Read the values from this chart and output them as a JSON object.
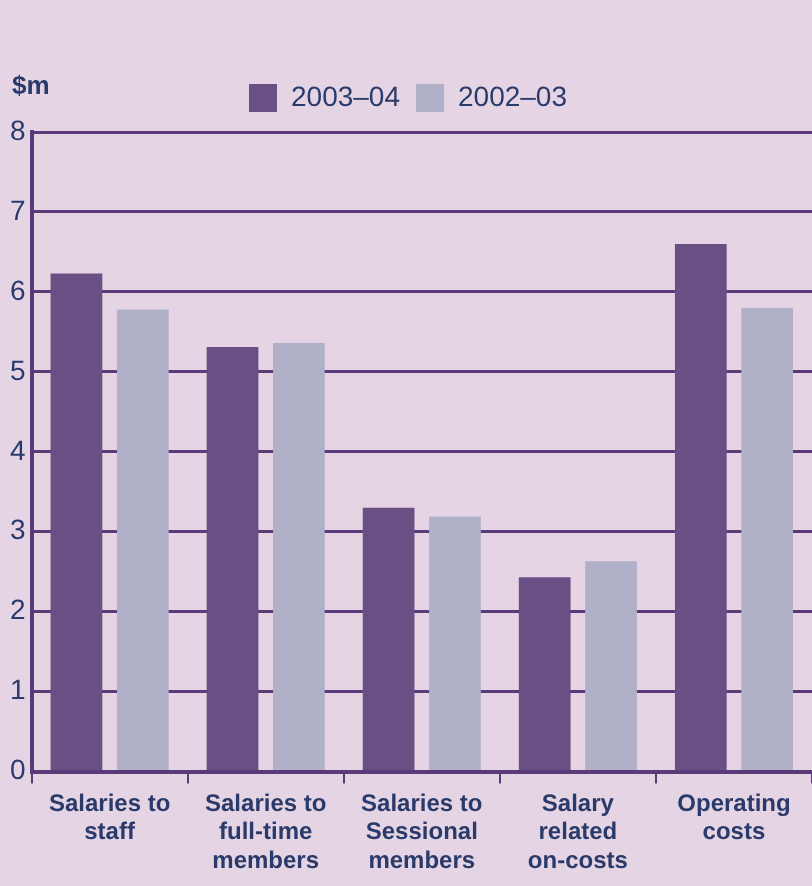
{
  "chart_data": {
    "type": "bar",
    "ylabel": "$m",
    "categories": [
      [
        "Salaries to",
        "staff"
      ],
      [
        "Salaries to",
        "full-time",
        "members"
      ],
      [
        "Salaries to",
        "Sessional",
        "members"
      ],
      [
        "Salary",
        "related",
        "on-costs"
      ],
      [
        "Operating",
        "costs"
      ]
    ],
    "series": [
      {
        "name": "2003–04",
        "color": "#6a4f84",
        "values": [
          6.23,
          5.31,
          3.3,
          2.43,
          6.6
        ]
      },
      {
        "name": "2002–03",
        "color": "#b0b0c8",
        "values": [
          5.78,
          5.36,
          3.19,
          2.63,
          5.8
        ]
      }
    ],
    "ylim": [
      0,
      8
    ],
    "yticks": [
      0,
      1,
      2,
      3,
      4,
      5,
      6,
      7,
      8
    ],
    "grid": "y",
    "legend": "top"
  }
}
